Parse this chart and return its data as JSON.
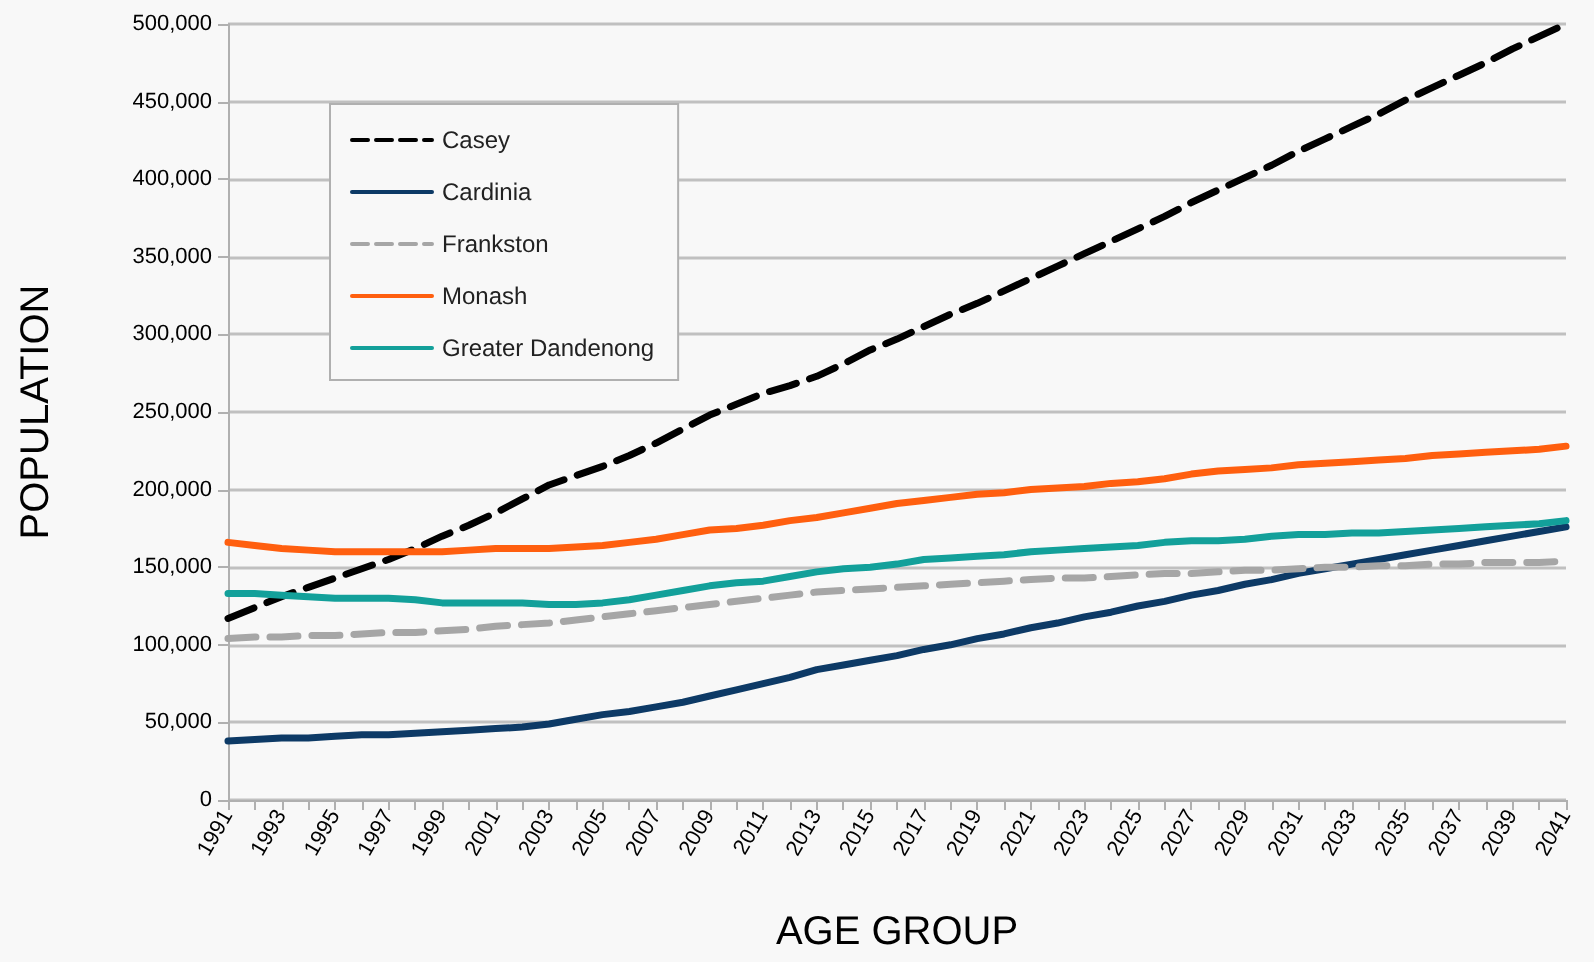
{
  "chart_data": {
    "type": "line",
    "xlabel": "AGE GROUP",
    "ylabel": "POPULATION",
    "categories": [
      "1991",
      null,
      "1993",
      null,
      "1995",
      null,
      "1997",
      null,
      "1999",
      null,
      "2001",
      null,
      "2003",
      null,
      "2005",
      null,
      "2007",
      null,
      "2009",
      null,
      "2011",
      null,
      "2013",
      null,
      "2015",
      null,
      "2017",
      null,
      "2019",
      null,
      "2021",
      null,
      "2023",
      null,
      "2025",
      null,
      "2027",
      null,
      "2029",
      null,
      "2031",
      null,
      "2033",
      null,
      "2035",
      null,
      "2037",
      null,
      "2039",
      null,
      "2041"
    ],
    "ylim": [
      0,
      500000
    ],
    "yticks": [
      0,
      {
        "value": 50000,
        "label": "50,000"
      },
      {
        "value": 100000,
        "label": "100,000"
      },
      {
        "value": 150000,
        "label": "150,000"
      },
      {
        "value": 200000,
        "label": "200,000"
      },
      {
        "value": 250000,
        "label": "250,000"
      },
      {
        "value": 300000,
        "label": "300,000"
      },
      {
        "value": 350000,
        "label": "350,000"
      },
      {
        "value": 400000,
        "label": "400,000"
      },
      {
        "value": 450000,
        "label": "450,000"
      },
      {
        "value": 500000,
        "label": "500,000"
      }
    ],
    "grid": "y",
    "legend": "top left",
    "marker": "none",
    "series": [
      {
        "name": "Casey",
        "color": "#000000",
        "line_style": "dashed",
        "values": [
          117000,
          124000,
          131000,
          137000,
          143000,
          149000,
          155000,
          162000,
          170000,
          177000,
          185000,
          194000,
          203000,
          209000,
          215000,
          222000,
          230000,
          239000,
          248000,
          255000,
          262000,
          267000,
          273000,
          281000,
          290000,
          297000,
          305000,
          313000,
          320000,
          328000,
          336000,
          344000,
          352000,
          360000,
          368000,
          376000,
          385000,
          393000,
          401000,
          409000,
          418000,
          426000,
          434000,
          442000,
          451000,
          459000,
          467000,
          475000,
          484000,
          492000,
          500000
        ]
      },
      {
        "name": "Cardinia",
        "color": "#0d3a66",
        "line_style": "solid",
        "values": [
          38000,
          39000,
          40000,
          40000,
          41000,
          42000,
          42000,
          43000,
          44000,
          45000,
          46000,
          47000,
          49000,
          52000,
          55000,
          57000,
          60000,
          63000,
          67000,
          71000,
          75000,
          79000,
          84000,
          87000,
          90000,
          93000,
          97000,
          100000,
          104000,
          107000,
          111000,
          114000,
          118000,
          121000,
          125000,
          128000,
          132000,
          135000,
          139000,
          142000,
          146000,
          149000,
          152000,
          155000,
          158000,
          161000,
          164000,
          167000,
          170000,
          173000,
          176000
        ]
      },
      {
        "name": "Frankston",
        "color": "#a6a6a6",
        "line_style": "dashed",
        "values": [
          104000,
          105000,
          105000,
          106000,
          106000,
          107000,
          108000,
          108000,
          109000,
          110000,
          112000,
          113000,
          114000,
          116000,
          118000,
          120000,
          122000,
          124000,
          126000,
          128000,
          130000,
          132000,
          134000,
          135000,
          136000,
          137000,
          138000,
          139000,
          140000,
          141000,
          142000,
          143000,
          143000,
          144000,
          145000,
          146000,
          146000,
          147000,
          148000,
          148000,
          149000,
          150000,
          150000,
          151000,
          151000,
          152000,
          152000,
          153000,
          153000,
          153000,
          154000
        ]
      },
      {
        "name": "Monash",
        "color": "#ff5f0f",
        "line_style": "solid",
        "values": [
          166000,
          164000,
          162000,
          161000,
          160000,
          160000,
          160000,
          160000,
          160000,
          161000,
          162000,
          162000,
          162000,
          163000,
          164000,
          166000,
          168000,
          171000,
          174000,
          175000,
          177000,
          180000,
          182000,
          185000,
          188000,
          191000,
          193000,
          195000,
          197000,
          198000,
          200000,
          201000,
          202000,
          204000,
          205000,
          207000,
          210000,
          212000,
          213000,
          214000,
          216000,
          217000,
          218000,
          219000,
          220000,
          222000,
          223000,
          224000,
          225000,
          226000,
          228000
        ]
      },
      {
        "name": "Greater Dandenong",
        "color": "#13a09a",
        "line_style": "solid",
        "values": [
          133000,
          133000,
          132000,
          131000,
          130000,
          130000,
          130000,
          129000,
          127000,
          127000,
          127000,
          127000,
          126000,
          126000,
          127000,
          129000,
          132000,
          135000,
          138000,
          140000,
          141000,
          144000,
          147000,
          149000,
          150000,
          152000,
          155000,
          156000,
          157000,
          158000,
          160000,
          161000,
          162000,
          163000,
          164000,
          166000,
          167000,
          167000,
          168000,
          170000,
          171000,
          171000,
          172000,
          172000,
          173000,
          174000,
          175000,
          176000,
          177000,
          178000,
          180000
        ]
      }
    ]
  }
}
